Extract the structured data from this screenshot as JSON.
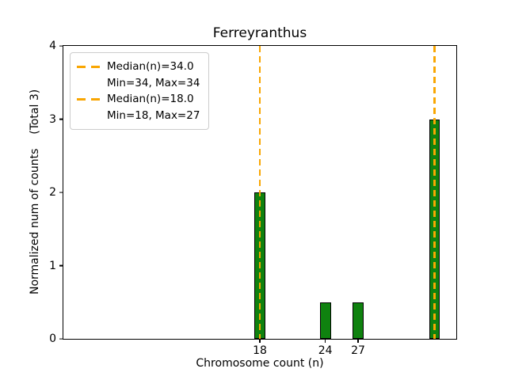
{
  "chart_data": {
    "type": "bar",
    "title": "Ferreyranthus",
    "xlabel": "Chromosome count (n)",
    "ylabel": "Normalized num of counts    (Total 3)",
    "xlim": [
      0,
      36
    ],
    "ylim": [
      0,
      4
    ],
    "xticks": [
      18,
      24,
      27
    ],
    "yticks": [
      0,
      1,
      2,
      3,
      4
    ],
    "grid": false,
    "bar_width": 1,
    "bars": [
      {
        "x": 18,
        "height": 2
      },
      {
        "x": 24,
        "height": 0.5
      },
      {
        "x": 27,
        "height": 0.5
      },
      {
        "x": 34,
        "height": 3
      }
    ],
    "vlines": [
      {
        "x": 34,
        "style": "dashed"
      },
      {
        "x": 18,
        "style": "dashed"
      }
    ],
    "colors": {
      "bar_fill": "#0f820f",
      "bar_edge": "#000000",
      "median_line": "#f9a602"
    },
    "legend": {
      "position": "upper left",
      "entries": [
        {
          "sample": "dashed-line",
          "label": "Median(n)=34.0"
        },
        {
          "sample": "none",
          "label": "Min=34, Max=34"
        },
        {
          "sample": "dashed-line",
          "label": "Median(n)=18.0"
        },
        {
          "sample": "none",
          "label": "Min=18, Max=27"
        }
      ]
    }
  }
}
